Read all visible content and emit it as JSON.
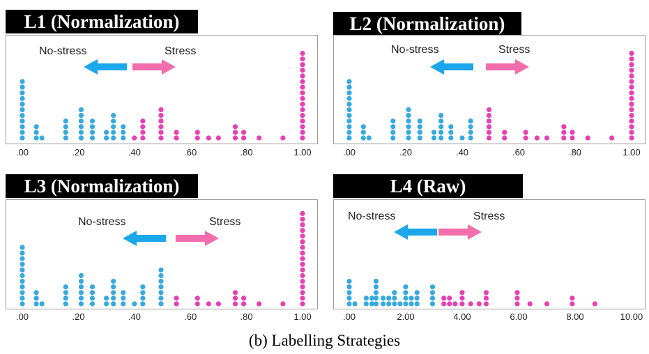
{
  "colors": {
    "no_stress": "#36a9e1",
    "stress": "#e83fb4",
    "arrow_left": "#1aa7ec",
    "arrow_right": "#f26dac"
  },
  "caption": "(b) Labelling Strategies",
  "chart_data": [
    {
      "type": "scatter",
      "title": "L1 (Normalization)",
      "label_no_stress": "No-stress",
      "label_stress": "Stress",
      "xlim": [
        0,
        1
      ],
      "x_ticks": [
        ".00",
        ".20",
        ".40",
        ".60",
        ".80",
        "1.00"
      ],
      "x_tick_values": [
        0,
        0.2,
        0.4,
        0.6,
        0.8,
        1.0
      ],
      "stacks": [
        {
          "x": 0.0,
          "count": 11,
          "class": "no_stress"
        },
        {
          "x": 0.05,
          "count": 3,
          "class": "no_stress"
        },
        {
          "x": 0.07,
          "count": 1,
          "class": "no_stress"
        },
        {
          "x": 0.155,
          "count": 4,
          "class": "no_stress"
        },
        {
          "x": 0.21,
          "count": 6,
          "class": "no_stress"
        },
        {
          "x": 0.25,
          "count": 4,
          "class": "no_stress"
        },
        {
          "x": 0.3,
          "count": 2,
          "class": "no_stress"
        },
        {
          "x": 0.325,
          "count": 5,
          "class": "no_stress"
        },
        {
          "x": 0.36,
          "count": 3,
          "class": "no_stress"
        },
        {
          "x": 0.4,
          "count": 1,
          "class": "stress"
        },
        {
          "x": 0.43,
          "count": 4,
          "class": "stress"
        },
        {
          "x": 0.495,
          "count": 6,
          "class": "stress"
        },
        {
          "x": 0.55,
          "count": 2,
          "class": "stress"
        },
        {
          "x": 0.625,
          "count": 2,
          "class": "stress"
        },
        {
          "x": 0.665,
          "count": 1,
          "class": "stress"
        },
        {
          "x": 0.7,
          "count": 1,
          "class": "stress"
        },
        {
          "x": 0.76,
          "count": 3,
          "class": "stress"
        },
        {
          "x": 0.79,
          "count": 2,
          "class": "stress"
        },
        {
          "x": 0.845,
          "count": 1,
          "class": "stress"
        },
        {
          "x": 0.93,
          "count": 1,
          "class": "stress"
        },
        {
          "x": 1.0,
          "count": 16,
          "class": "stress"
        }
      ]
    },
    {
      "type": "scatter",
      "title": "L2 (Normalization)",
      "label_no_stress": "No-stress",
      "label_stress": "Stress",
      "xlim": [
        0,
        1
      ],
      "x_ticks": [
        ".00",
        ".20",
        ".40",
        ".60",
        ".80",
        "1.00"
      ],
      "x_tick_values": [
        0,
        0.2,
        0.4,
        0.6,
        0.8,
        1.0
      ],
      "stacks": [
        {
          "x": 0.0,
          "count": 11,
          "class": "no_stress"
        },
        {
          "x": 0.05,
          "count": 3,
          "class": "no_stress"
        },
        {
          "x": 0.07,
          "count": 1,
          "class": "no_stress"
        },
        {
          "x": 0.155,
          "count": 4,
          "class": "no_stress"
        },
        {
          "x": 0.21,
          "count": 6,
          "class": "no_stress"
        },
        {
          "x": 0.25,
          "count": 4,
          "class": "no_stress"
        },
        {
          "x": 0.3,
          "count": 2,
          "class": "no_stress"
        },
        {
          "x": 0.325,
          "count": 5,
          "class": "no_stress"
        },
        {
          "x": 0.36,
          "count": 3,
          "class": "no_stress"
        },
        {
          "x": 0.4,
          "count": 1,
          "class": "no_stress"
        },
        {
          "x": 0.43,
          "count": 4,
          "class": "no_stress"
        },
        {
          "x": 0.495,
          "count": 6,
          "class": "stress"
        },
        {
          "x": 0.55,
          "count": 2,
          "class": "stress"
        },
        {
          "x": 0.625,
          "count": 2,
          "class": "stress"
        },
        {
          "x": 0.665,
          "count": 1,
          "class": "stress"
        },
        {
          "x": 0.7,
          "count": 1,
          "class": "stress"
        },
        {
          "x": 0.76,
          "count": 3,
          "class": "stress"
        },
        {
          "x": 0.79,
          "count": 2,
          "class": "stress"
        },
        {
          "x": 0.845,
          "count": 1,
          "class": "stress"
        },
        {
          "x": 0.93,
          "count": 1,
          "class": "stress"
        },
        {
          "x": 1.0,
          "count": 16,
          "class": "stress"
        }
      ]
    },
    {
      "type": "scatter",
      "title": "L3 (Normalization)",
      "label_no_stress": "No-stress",
      "label_stress": "Stress",
      "xlim": [
        0,
        1
      ],
      "x_ticks": [
        ".00",
        ".20",
        ".40",
        ".60",
        ".80",
        "1.00"
      ],
      "x_tick_values": [
        0,
        0.2,
        0.4,
        0.6,
        0.8,
        1.0
      ],
      "stacks": [
        {
          "x": 0.0,
          "count": 11,
          "class": "no_stress"
        },
        {
          "x": 0.05,
          "count": 3,
          "class": "no_stress"
        },
        {
          "x": 0.07,
          "count": 1,
          "class": "no_stress"
        },
        {
          "x": 0.155,
          "count": 4,
          "class": "no_stress"
        },
        {
          "x": 0.21,
          "count": 6,
          "class": "no_stress"
        },
        {
          "x": 0.25,
          "count": 4,
          "class": "no_stress"
        },
        {
          "x": 0.3,
          "count": 2,
          "class": "no_stress"
        },
        {
          "x": 0.325,
          "count": 5,
          "class": "no_stress"
        },
        {
          "x": 0.36,
          "count": 3,
          "class": "no_stress"
        },
        {
          "x": 0.4,
          "count": 1,
          "class": "no_stress"
        },
        {
          "x": 0.43,
          "count": 4,
          "class": "no_stress"
        },
        {
          "x": 0.495,
          "count": 7,
          "class": "no_stress"
        },
        {
          "x": 0.55,
          "count": 2,
          "class": "stress"
        },
        {
          "x": 0.625,
          "count": 2,
          "class": "stress"
        },
        {
          "x": 0.665,
          "count": 1,
          "class": "stress"
        },
        {
          "x": 0.7,
          "count": 1,
          "class": "stress"
        },
        {
          "x": 0.76,
          "count": 3,
          "class": "stress"
        },
        {
          "x": 0.79,
          "count": 2,
          "class": "stress"
        },
        {
          "x": 0.845,
          "count": 1,
          "class": "stress"
        },
        {
          "x": 0.93,
          "count": 1,
          "class": "stress"
        },
        {
          "x": 1.0,
          "count": 17,
          "class": "stress"
        }
      ]
    },
    {
      "type": "scatter",
      "title": "L4 (Raw)",
      "label_no_stress": "No-stress",
      "label_stress": "Stress",
      "xlim": [
        0,
        10
      ],
      "x_ticks": [
        ".00",
        "2.00",
        "4.00",
        "6.00",
        "8.00",
        "10.00"
      ],
      "x_tick_values": [
        0,
        2,
        4,
        6,
        8,
        10
      ],
      "stacks": [
        {
          "x": 0.0,
          "count": 5,
          "class": "no_stress"
        },
        {
          "x": 0.2,
          "count": 1,
          "class": "no_stress"
        },
        {
          "x": 0.6,
          "count": 2,
          "class": "no_stress"
        },
        {
          "x": 0.8,
          "count": 2,
          "class": "no_stress"
        },
        {
          "x": 0.95,
          "count": 5,
          "class": "no_stress"
        },
        {
          "x": 1.2,
          "count": 2,
          "class": "no_stress"
        },
        {
          "x": 1.4,
          "count": 2,
          "class": "no_stress"
        },
        {
          "x": 1.6,
          "count": 3,
          "class": "no_stress"
        },
        {
          "x": 1.8,
          "count": 1,
          "class": "no_stress"
        },
        {
          "x": 2.0,
          "count": 4,
          "class": "no_stress"
        },
        {
          "x": 2.2,
          "count": 2,
          "class": "no_stress"
        },
        {
          "x": 2.4,
          "count": 3,
          "class": "no_stress"
        },
        {
          "x": 2.95,
          "count": 4,
          "class": "no_stress"
        },
        {
          "x": 3.35,
          "count": 2,
          "class": "stress"
        },
        {
          "x": 3.55,
          "count": 2,
          "class": "stress"
        },
        {
          "x": 3.75,
          "count": 1,
          "class": "stress"
        },
        {
          "x": 4.0,
          "count": 3,
          "class": "stress"
        },
        {
          "x": 4.3,
          "count": 1,
          "class": "stress"
        },
        {
          "x": 4.6,
          "count": 1,
          "class": "stress"
        },
        {
          "x": 4.85,
          "count": 3,
          "class": "stress"
        },
        {
          "x": 5.95,
          "count": 3,
          "class": "stress"
        },
        {
          "x": 6.4,
          "count": 1,
          "class": "stress"
        },
        {
          "x": 7.0,
          "count": 1,
          "class": "stress"
        },
        {
          "x": 7.9,
          "count": 2,
          "class": "stress"
        },
        {
          "x": 8.7,
          "count": 1,
          "class": "stress"
        }
      ]
    }
  ]
}
